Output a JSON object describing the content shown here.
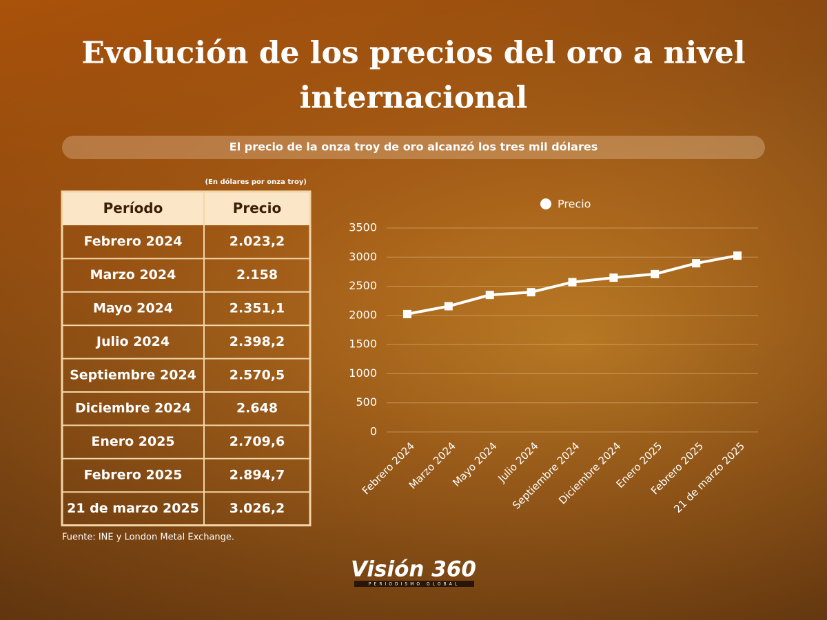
{
  "header": {
    "title_line1": "Evolución de los precios del oro a nivel",
    "title_line2": "internacional",
    "subtitle": "El precio de la onza troy de oro alcanzó los tres mil dólares"
  },
  "table": {
    "note": "(En dólares por onza troy)",
    "columns": [
      "Período",
      "Precio"
    ],
    "rows": [
      [
        "Febrero 2024",
        "2.023,2"
      ],
      [
        "Marzo 2024",
        "2.158"
      ],
      [
        "Mayo 2024",
        "2.351,1"
      ],
      [
        "Julio 2024",
        "2.398,2"
      ],
      [
        "Septiembre 2024",
        "2.570,5"
      ],
      [
        "Diciembre 2024",
        "2.648"
      ],
      [
        "Enero 2025",
        "2.709,6"
      ],
      [
        "Febrero 2025",
        "2.894,7"
      ],
      [
        "21 de marzo 2025",
        "3.026,2"
      ]
    ]
  },
  "source": "Fuente: INE y London Metal Exchange.",
  "logo": {
    "name": "Visión 360",
    "tagline": "PERIODISMO GLOBAL"
  },
  "chart_data": {
    "type": "line",
    "categories": [
      "Febrero 2024",
      "Marzo 2024",
      "Mayo 2024",
      "Julio 2024",
      "Septiembre 2024",
      "Diciembre 2024",
      "Enero 2025",
      "Febrero 2025",
      "21 de marzo 2025"
    ],
    "series": [
      {
        "name": "Precio",
        "color": "#ffffff",
        "values": [
          2023.2,
          2158,
          2351.1,
          2398.2,
          2570.5,
          2648,
          2709.6,
          2894.7,
          3026.2
        ]
      }
    ],
    "ylim": [
      0,
      3500
    ],
    "yticks": [
      0,
      500,
      1000,
      1500,
      2000,
      2500,
      3000,
      3500
    ],
    "grid": true,
    "legend": "top"
  }
}
